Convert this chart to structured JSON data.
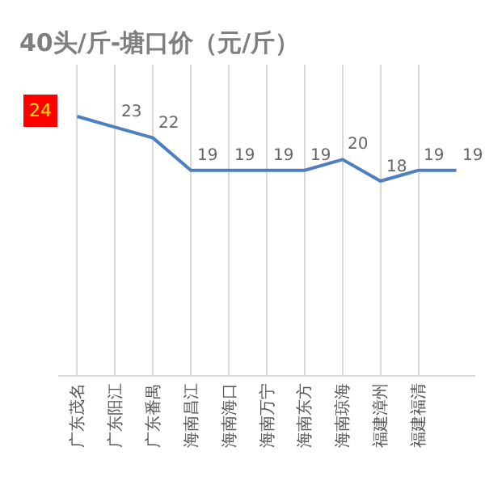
{
  "chart_data": {
    "type": "line",
    "title": "40头/斤-塘口价（元/斤）",
    "categories": [
      "广东茂名",
      "广东阳江",
      "广东番禺",
      "海南昌江",
      "海南海口",
      "海南万宁",
      "海南东方",
      "海南琼海",
      "福建漳州",
      "福建福清",
      null
    ],
    "series": [
      {
        "color": "#4f7fbf",
        "values": [
          24,
          23,
          22,
          19,
          19,
          19,
          19,
          20,
          18,
          19,
          19
        ]
      }
    ],
    "data_labels": true,
    "grid": "x",
    "marker": "none",
    "line_style": "solid",
    "legend": false
  }
}
